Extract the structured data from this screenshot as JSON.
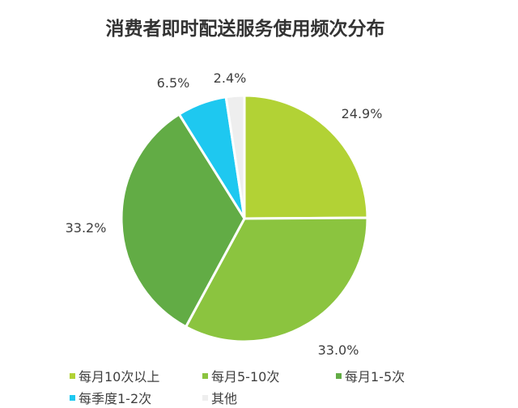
{
  "chart_data": {
    "type": "pie",
    "title": "消费者即时配送服务使用频次分布",
    "start_angle": "12 o'clock, clockwise",
    "legend_position": "bottom",
    "slices": [
      {
        "label": "每月10次以上",
        "value": 24.9,
        "display": "24.9%",
        "color": "#b2d235"
      },
      {
        "label": "每月5-10次",
        "value": 33.0,
        "display": "33.0%",
        "color": "#8bc43f"
      },
      {
        "label": "每月1-5次",
        "value": 33.2,
        "display": "33.2%",
        "color": "#62ac45"
      },
      {
        "label": "每季度1-2次",
        "value": 6.5,
        "display": "6.5%",
        "color": "#1ec8f0"
      },
      {
        "label": "其他",
        "value": 2.4,
        "display": "2.4%",
        "color": "#eeeeee"
      }
    ]
  }
}
